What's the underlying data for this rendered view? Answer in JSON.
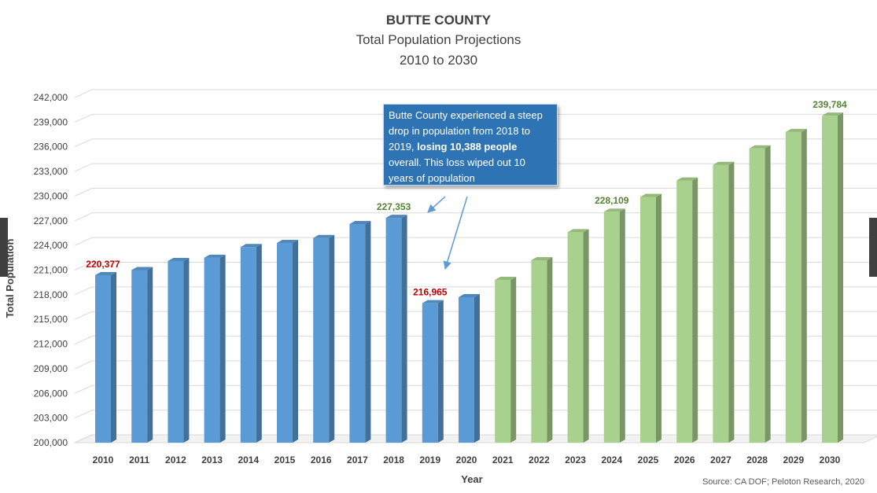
{
  "title": "BUTTE COUNTY",
  "subtitle_line1": "Total Population Projections",
  "subtitle_line2": "2010 to 2030",
  "source": "Source: CA DOF; Peloton Research, 2020",
  "callout": {
    "part1": "Butte County experienced a steep drop in population from 2018 to 2019, ",
    "bold": "losing 10,388 people",
    "part2": " overall.  This loss wiped out 10 years of population"
  },
  "colors": {
    "historical": "#5b9bd5",
    "projected": "#a9d18e",
    "label_red": "#c00000",
    "label_green": "#548235",
    "callout_bg": "#2e74b5"
  },
  "chart_data": {
    "type": "bar",
    "title": "BUTTE COUNTY",
    "xlabel": "Year",
    "ylabel": "Total Population",
    "ylim": [
      200000,
      242000
    ],
    "yticks": [
      "200,000",
      "203,000",
      "206,000",
      "209,000",
      "212,000",
      "215,000",
      "218,000",
      "221,000",
      "224,000",
      "227,000",
      "230,000",
      "233,000",
      "236,000",
      "239,000",
      "242,000"
    ],
    "grid": true,
    "categories": [
      "2010",
      "2011",
      "2012",
      "2013",
      "2014",
      "2015",
      "2016",
      "2017",
      "2018",
      "2019",
      "2020",
      "2021",
      "2022",
      "2023",
      "2024",
      "2025",
      "2026",
      "2027",
      "2028",
      "2029",
      "2030"
    ],
    "values": [
      220377,
      221000,
      222100,
      222500,
      223800,
      224300,
      224900,
      226600,
      227353,
      216965,
      217700,
      219800,
      222200,
      225600,
      228109,
      229900,
      231900,
      233800,
      235800,
      237800,
      239784
    ],
    "segment": [
      "historical",
      "historical",
      "historical",
      "historical",
      "historical",
      "historical",
      "historical",
      "historical",
      "historical",
      "historical",
      "historical",
      "projected",
      "projected",
      "projected",
      "projected",
      "projected",
      "projected",
      "projected",
      "projected",
      "projected",
      "projected"
    ],
    "data_labels": [
      {
        "index": 0,
        "text": "220,377",
        "color": "red"
      },
      {
        "index": 8,
        "text": "227,353",
        "color": "green"
      },
      {
        "index": 9,
        "text": "216,965",
        "color": "red"
      },
      {
        "index": 14,
        "text": "228,109",
        "color": "green"
      },
      {
        "index": 20,
        "text": "239,784",
        "color": "green"
      }
    ]
  }
}
